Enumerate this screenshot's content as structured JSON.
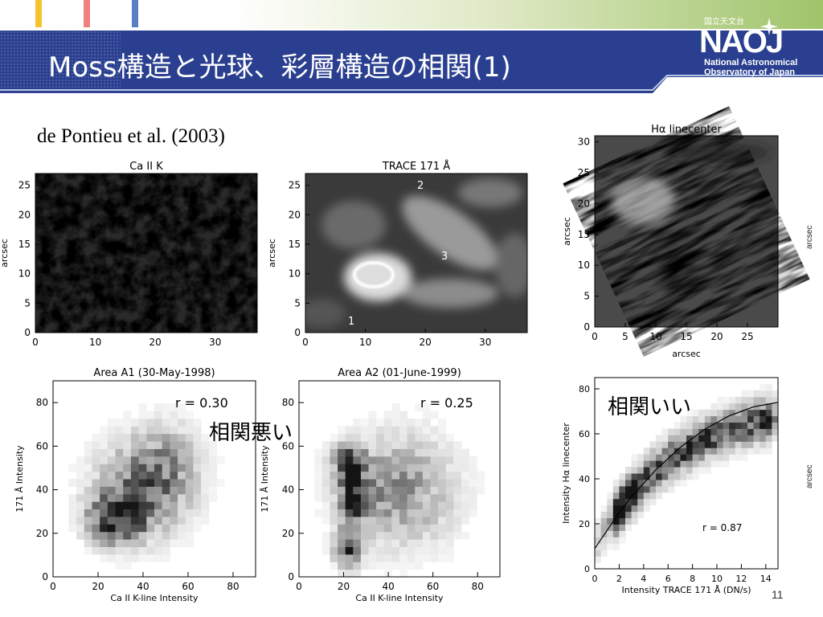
{
  "header": {
    "title": "Moss構造と光球、彩層構造の相関(1)",
    "tick_colors": [
      "#f4c430",
      "#f08080",
      "#5a7fc0"
    ]
  },
  "logo": {
    "kanji": "国立天文台",
    "mark": "NAOJ",
    "line1": "National Astronomical",
    "line2": "Observatory of Japan"
  },
  "citation": "de Pontieu et al. (2003)",
  "annotations": {
    "bad_correlation": "相関悪い",
    "good_correlation": "相関いい"
  },
  "page_number": "11",
  "edge_labels": [
    "arcsec",
    "arcsec"
  ],
  "panels": {
    "caiik": {
      "title": "Ca II K",
      "ylabel": "arcsec",
      "xticks": [
        "0",
        "10",
        "20",
        "30"
      ],
      "yticks": [
        "0",
        "5",
        "10",
        "15",
        "20",
        "25"
      ]
    },
    "trace": {
      "title": "TRACE 171 Å",
      "ylabel": "arcsec",
      "xticks": [
        "0",
        "10",
        "20",
        "30"
      ],
      "yticks": [
        "0",
        "5",
        "10",
        "15",
        "20",
        "25"
      ],
      "markers": [
        "1",
        "2",
        "3"
      ]
    },
    "halpha": {
      "title": "Hα linecenter",
      "ylabel": "arcsec",
      "xlabel": "arcsec",
      "xticks": [
        "0",
        "5",
        "10",
        "15",
        "20",
        "25"
      ],
      "yticks": [
        "0",
        "5",
        "10",
        "15",
        "20",
        "25",
        "30"
      ]
    }
  },
  "chart_data": [
    {
      "type": "heatmap",
      "title": "Area A1 (30-May-1998)",
      "xlabel": "Ca II K-line Intensity",
      "ylabel": "171 Å Intensity",
      "xlim": [
        0,
        90
      ],
      "ylim": [
        0,
        90
      ],
      "xticks": [
        "0",
        "20",
        "40",
        "60",
        "80"
      ],
      "yticks": [
        "0",
        "20",
        "40",
        "60",
        "80"
      ],
      "annotation": "r = 0.30",
      "correlation": 0.3
    },
    {
      "type": "heatmap",
      "title": "Area A2 (01-June-1999)",
      "xlabel": "Ca II K-line Intensity",
      "ylabel": "171 Å Intensity",
      "xlim": [
        0,
        90
      ],
      "ylim": [
        0,
        90
      ],
      "xticks": [
        "0",
        "20",
        "40",
        "60",
        "80"
      ],
      "yticks": [
        "0",
        "20",
        "40",
        "60",
        "80"
      ],
      "annotation": "r = 0.25",
      "correlation": 0.25
    },
    {
      "type": "heatmap",
      "title": "",
      "xlabel": "Intensity TRACE 171 Å (DN/s)",
      "ylabel": "Intensity Hα linecenter",
      "xlim": [
        0,
        15
      ],
      "ylim": [
        0,
        85
      ],
      "xticks": [
        "0",
        "2",
        "4",
        "6",
        "8",
        "10",
        "12",
        "14"
      ],
      "yticks": [
        "0",
        "20",
        "40",
        "60",
        "80"
      ],
      "annotation": "r = 0.87",
      "correlation": 0.87,
      "fit_curve": {
        "x": [
          0,
          1,
          2,
          3,
          4,
          5,
          6,
          7,
          8,
          9,
          10,
          11,
          12,
          13,
          14,
          15
        ],
        "y": [
          9,
          17,
          25,
          32,
          38,
          44,
          49,
          54,
          58,
          62,
          65,
          68,
          70,
          72,
          73,
          74
        ]
      }
    }
  ]
}
